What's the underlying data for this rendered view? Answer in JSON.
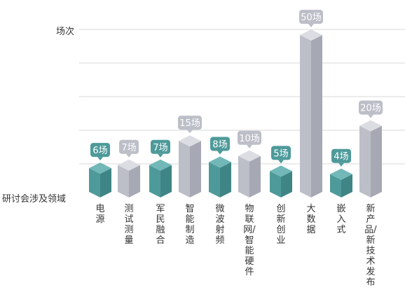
{
  "chart_data": {
    "type": "bar",
    "ylabel": "场次",
    "xlabel": "研讨会涉及领域",
    "unit_suffix": "场",
    "categories": [
      "电源",
      "测试测量",
      "军民融合",
      "智能制造",
      "微波射频",
      "物联网/智能硬件",
      "创新创业",
      "大数据",
      "嵌入式",
      "新产品/新技术发布"
    ],
    "values": [
      6,
      7,
      7,
      15,
      8,
      10,
      5,
      50,
      4,
      20
    ],
    "ylim": [
      0,
      50
    ],
    "grid": true,
    "legend": "none",
    "colors": {
      "teal_front": "#4e9a9a",
      "teal_top": "#72b8b8",
      "teal_side": "#3f8585",
      "gray_front": "#bcbec8",
      "gray_top": "#dcdde3",
      "gray_side": "#a6a9b4",
      "grid": "#d9d9d9"
    },
    "bar_color_groups": [
      "teal",
      "gray",
      "teal",
      "gray",
      "teal",
      "gray",
      "teal",
      "gray",
      "teal",
      "gray"
    ]
  }
}
